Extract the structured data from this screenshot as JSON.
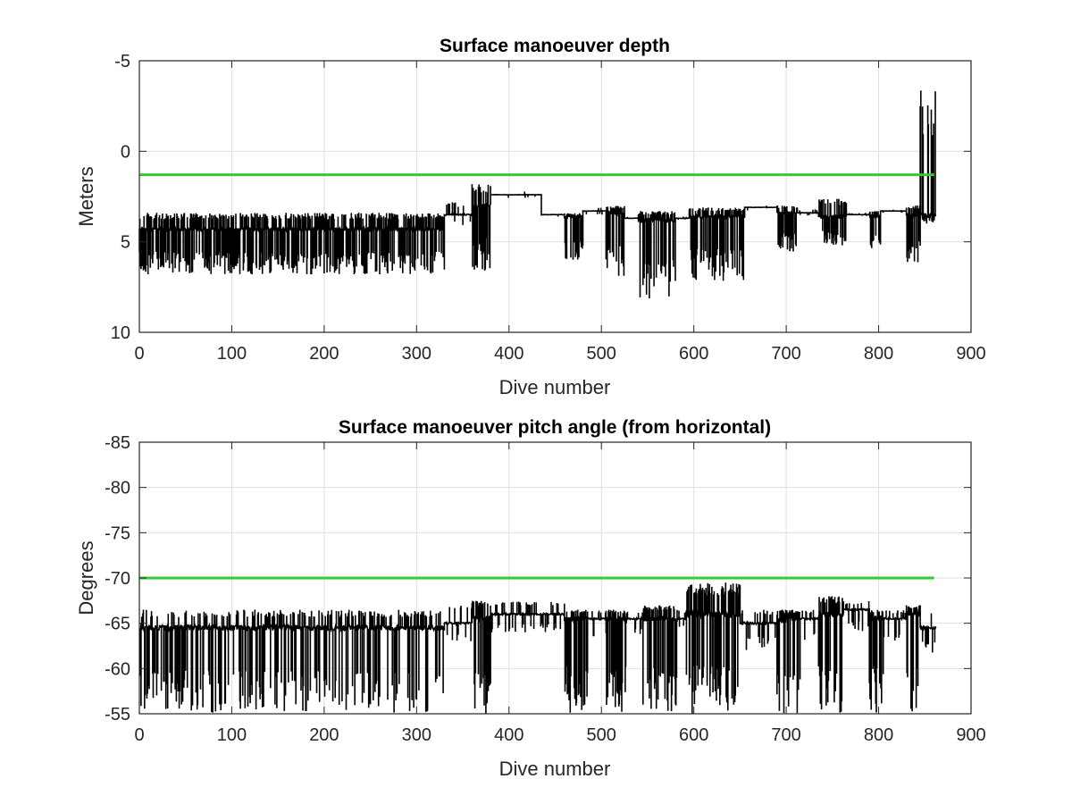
{
  "colors": {
    "data": "#000000",
    "threshold": "#33cc33",
    "grid": "#dfdfdf",
    "axes": "#262626"
  },
  "chart_data": [
    {
      "type": "line",
      "title": "Surface manoeuver depth",
      "xlabel": "Dive number",
      "ylabel": "Meters",
      "xlim": [
        0,
        900
      ],
      "ylim": [
        -5,
        10
      ],
      "y_reversed": true,
      "grid": true,
      "xticks": [
        "0",
        "100",
        "200",
        "300",
        "400",
        "500",
        "600",
        "700",
        "800",
        "900"
      ],
      "yticks": [
        "-5",
        "0",
        "5",
        "10"
      ],
      "threshold": {
        "y": 1.3,
        "x_range": [
          0,
          860
        ],
        "color": "#33cc33"
      },
      "series": [
        {
          "color": "#000000",
          "segments": [
            {
              "x": [
                0,
                330
              ],
              "base": 4.3,
              "spike_low": 3.4,
              "spike_high": 6.8,
              "density": 1.0
            },
            {
              "x": [
                330,
                360
              ],
              "base": 3.5,
              "spike_low": 2.8,
              "spike_high": 4.2,
              "density": 0.3
            },
            {
              "x": [
                360,
                380
              ],
              "base": 3.0,
              "spike_low": 1.8,
              "spike_high": 6.6,
              "density": 1.0
            },
            {
              "x": [
                380,
                435
              ],
              "base": 2.4,
              "spike_low": 2.2,
              "spike_high": 2.6,
              "density": 0.1
            },
            {
              "x": [
                435,
                460
              ],
              "base": 3.5,
              "spike_low": 3.3,
              "spike_high": 3.7,
              "density": 0.1
            },
            {
              "x": [
                460,
                480
              ],
              "base": 3.6,
              "spike_low": 3.4,
              "spike_high": 6.0,
              "density": 1.0
            },
            {
              "x": [
                480,
                505
              ],
              "base": 3.3,
              "spike_low": 3.1,
              "spike_high": 3.5,
              "density": 0.1
            },
            {
              "x": [
                505,
                525
              ],
              "base": 3.4,
              "spike_low": 3.0,
              "spike_high": 6.9,
              "density": 1.0
            },
            {
              "x": [
                525,
                540
              ],
              "base": 3.7,
              "spike_low": 3.6,
              "spike_high": 3.8,
              "density": 0.1
            },
            {
              "x": [
                540,
                580
              ],
              "base": 3.8,
              "spike_low": 3.3,
              "spike_high": 8.2,
              "density": 1.0
            },
            {
              "x": [
                580,
                595
              ],
              "base": 3.7,
              "spike_low": 3.6,
              "spike_high": 3.8,
              "density": 0.1
            },
            {
              "x": [
                595,
                655
              ],
              "base": 3.6,
              "spike_low": 3.1,
              "spike_high": 7.2,
              "density": 1.0
            },
            {
              "x": [
                655,
                690
              ],
              "base": 3.1,
              "spike_low": 3.0,
              "spike_high": 3.3,
              "density": 0.1
            },
            {
              "x": [
                690,
                712
              ],
              "base": 3.4,
              "spike_low": 3.0,
              "spike_high": 5.6,
              "density": 1.0
            },
            {
              "x": [
                712,
                735
              ],
              "base": 3.4,
              "spike_low": 3.2,
              "spike_high": 3.6,
              "density": 0.1
            },
            {
              "x": [
                735,
                765
              ],
              "base": 3.6,
              "spike_low": 2.6,
              "spike_high": 5.2,
              "density": 0.9
            },
            {
              "x": [
                765,
                790
              ],
              "base": 3.5,
              "spike_low": 3.4,
              "spike_high": 3.6,
              "density": 0.1
            },
            {
              "x": [
                790,
                802
              ],
              "base": 3.6,
              "spike_low": 3.3,
              "spike_high": 5.6,
              "density": 1.0
            },
            {
              "x": [
                802,
                830
              ],
              "base": 3.3,
              "spike_low": 3.2,
              "spike_high": 3.4,
              "density": 0.1
            },
            {
              "x": [
                830,
                845
              ],
              "base": 3.5,
              "spike_low": 3.0,
              "spike_high": 6.2,
              "density": 1.0
            },
            {
              "x": [
                845,
                862
              ],
              "base": 3.6,
              "spike_low": -3.6,
              "spike_high": 4.0,
              "density": 0.8
            }
          ]
        }
      ]
    },
    {
      "type": "line",
      "title": "Surface manoeuver pitch angle (from horizontal)",
      "xlabel": "Dive number",
      "ylabel": "Degrees",
      "xlim": [
        0,
        900
      ],
      "ylim": [
        -85,
        -55
      ],
      "grid": true,
      "xticks": [
        "0",
        "100",
        "200",
        "300",
        "400",
        "500",
        "600",
        "700",
        "800",
        "900"
      ],
      "yticks": [
        "-55",
        "-60",
        "-65",
        "-70",
        "-75",
        "-80",
        "-85"
      ],
      "threshold": {
        "y": -70,
        "x_range": [
          0,
          860
        ],
        "color": "#33cc33"
      },
      "series": [
        {
          "color": "#000000",
          "segments": [
            {
              "x": [
                0,
                330
              ],
              "base": -64.5,
              "spike_low": -66.5,
              "spike_high": -55,
              "density": 0.55
            },
            {
              "x": [
                330,
                360
              ],
              "base": -65.0,
              "spike_low": -67.0,
              "spike_high": -63.0,
              "density": 0.3
            },
            {
              "x": [
                360,
                380
              ],
              "base": -65.5,
              "spike_low": -67.5,
              "spike_high": -55,
              "density": 1.0
            },
            {
              "x": [
                380,
                460
              ],
              "base": -66.0,
              "spike_low": -67.5,
              "spike_high": -64.0,
              "density": 0.3
            },
            {
              "x": [
                460,
                485
              ],
              "base": -65.5,
              "spike_low": -66.5,
              "spike_high": -55,
              "density": 1.0
            },
            {
              "x": [
                485,
                505
              ],
              "base": -65.5,
              "spike_low": -66.5,
              "spike_high": -63.5,
              "density": 0.3
            },
            {
              "x": [
                505,
                527
              ],
              "base": -65.5,
              "spike_low": -66.5,
              "spike_high": -55,
              "density": 1.0
            },
            {
              "x": [
                527,
                545
              ],
              "base": -65.5,
              "spike_low": -66.5,
              "spike_high": -63.5,
              "density": 0.3
            },
            {
              "x": [
                545,
                582
              ],
              "base": -65.5,
              "spike_low": -67.0,
              "spike_high": -55,
              "density": 1.0
            },
            {
              "x": [
                582,
                592
              ],
              "base": -65.5,
              "spike_low": -66.5,
              "spike_high": -64.0,
              "density": 0.3
            },
            {
              "x": [
                592,
                650
              ],
              "base": -66.0,
              "spike_low": -69.5,
              "spike_high": -55,
              "density": 1.0
            },
            {
              "x": [
                650,
                690
              ],
              "base": -65.0,
              "spike_low": -66.5,
              "spike_high": -62.0,
              "density": 0.35
            },
            {
              "x": [
                690,
                715
              ],
              "base": -65.5,
              "spike_low": -66.5,
              "spike_high": -55,
              "density": 1.0
            },
            {
              "x": [
                715,
                735
              ],
              "base": -65.5,
              "spike_low": -66.5,
              "spike_high": -63.0,
              "density": 0.3
            },
            {
              "x": [
                735,
                762
              ],
              "base": -66.0,
              "spike_low": -68.0,
              "spike_high": -55,
              "density": 1.0
            },
            {
              "x": [
                762,
                790
              ],
              "base": -66.5,
              "spike_low": -67.5,
              "spike_high": -64.0,
              "density": 0.3
            },
            {
              "x": [
                790,
                805
              ],
              "base": -65.5,
              "spike_low": -66.5,
              "spike_high": -55,
              "density": 1.0
            },
            {
              "x": [
                805,
                830
              ],
              "base": -65.5,
              "spike_low": -66.5,
              "spike_high": -62.5,
              "density": 0.3
            },
            {
              "x": [
                830,
                845
              ],
              "base": -66.0,
              "spike_low": -67.0,
              "spike_high": -55,
              "density": 1.0
            },
            {
              "x": [
                845,
                862
              ],
              "base": -64.5,
              "spike_low": -66.5,
              "spike_high": -61.5,
              "density": 0.4
            }
          ]
        }
      ]
    }
  ]
}
